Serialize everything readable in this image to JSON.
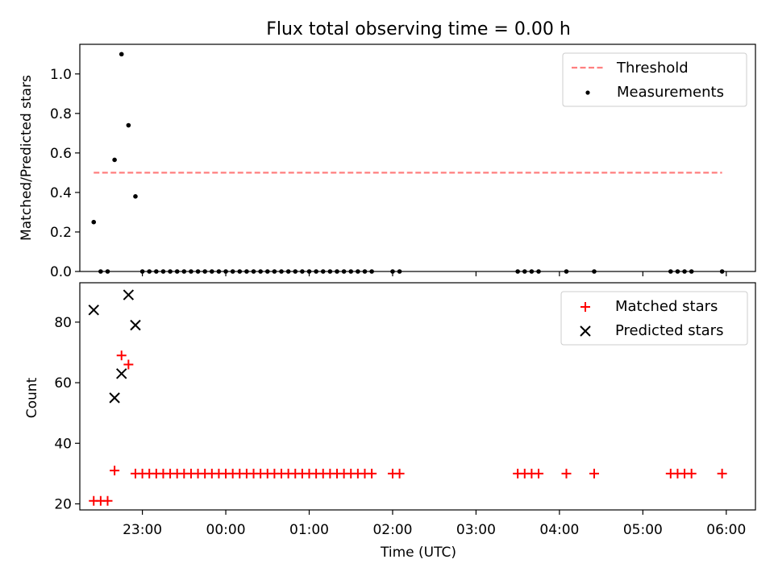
{
  "figure": {
    "title": "Flux total observing time = 0.00 h"
  },
  "chart_data": [
    {
      "type": "scatter",
      "panel": "top",
      "xlabel": "",
      "ylabel": "Matched/Predicted stars",
      "xlim": [
        22.25,
        6.35
      ],
      "x_tick_labels": [
        "23:00",
        "00:00",
        "01:00",
        "02:00",
        "03:00",
        "04:00",
        "05:00",
        "06:00"
      ],
      "ylim": [
        0,
        1.15
      ],
      "y_ticks": [
        0.0,
        0.2,
        0.4,
        0.6,
        0.8,
        1.0
      ],
      "y_tick_labels": [
        "0.0",
        "0.2",
        "0.4",
        "0.6",
        "0.8",
        "1.0"
      ],
      "legend": {
        "location": "top-right",
        "entries": [
          "Threshold",
          "Measurements"
        ]
      },
      "threshold": {
        "name": "Threshold",
        "value": 0.5,
        "x_range": [
          "22:25",
          "05:57"
        ],
        "color": "#ff7f7f",
        "style": "dashed"
      },
      "measurements": {
        "name": "Measurements",
        "color": "#000000",
        "points": [
          {
            "x": "22:25",
            "y": 0.25
          },
          {
            "x": "22:30",
            "y": 0.0
          },
          {
            "x": "22:35",
            "y": 0.0
          },
          {
            "x": "22:40",
            "y": 0.565
          },
          {
            "x": "22:45",
            "y": 1.1
          },
          {
            "x": "22:50",
            "y": 0.74
          },
          {
            "x": "22:55",
            "y": 0.38
          },
          {
            "x": "23:00",
            "y": 0.0
          },
          {
            "x": "23:05",
            "y": 0.0
          },
          {
            "x": "23:10",
            "y": 0.0
          },
          {
            "x": "23:15",
            "y": 0.0
          },
          {
            "x": "23:20",
            "y": 0.0
          },
          {
            "x": "23:25",
            "y": 0.0
          },
          {
            "x": "23:30",
            "y": 0.0
          },
          {
            "x": "23:35",
            "y": 0.0
          },
          {
            "x": "23:40",
            "y": 0.0
          },
          {
            "x": "23:45",
            "y": 0.0
          },
          {
            "x": "23:50",
            "y": 0.0
          },
          {
            "x": "23:55",
            "y": 0.0
          },
          {
            "x": "00:00",
            "y": 0.0
          },
          {
            "x": "00:05",
            "y": 0.0
          },
          {
            "x": "00:10",
            "y": 0.0
          },
          {
            "x": "00:15",
            "y": 0.0
          },
          {
            "x": "00:20",
            "y": 0.0
          },
          {
            "x": "00:25",
            "y": 0.0
          },
          {
            "x": "00:30",
            "y": 0.0
          },
          {
            "x": "00:35",
            "y": 0.0
          },
          {
            "x": "00:40",
            "y": 0.0
          },
          {
            "x": "00:45",
            "y": 0.0
          },
          {
            "x": "00:50",
            "y": 0.0
          },
          {
            "x": "00:55",
            "y": 0.0
          },
          {
            "x": "01:00",
            "y": 0.0
          },
          {
            "x": "01:05",
            "y": 0.0
          },
          {
            "x": "01:10",
            "y": 0.0
          },
          {
            "x": "01:15",
            "y": 0.0
          },
          {
            "x": "01:20",
            "y": 0.0
          },
          {
            "x": "01:25",
            "y": 0.0
          },
          {
            "x": "01:30",
            "y": 0.0
          },
          {
            "x": "01:35",
            "y": 0.0
          },
          {
            "x": "01:40",
            "y": 0.0
          },
          {
            "x": "01:45",
            "y": 0.0
          },
          {
            "x": "02:00",
            "y": 0.0
          },
          {
            "x": "02:05",
            "y": 0.0
          },
          {
            "x": "03:30",
            "y": 0.0
          },
          {
            "x": "03:35",
            "y": 0.0
          },
          {
            "x": "03:40",
            "y": 0.0
          },
          {
            "x": "03:45",
            "y": 0.0
          },
          {
            "x": "04:05",
            "y": 0.0
          },
          {
            "x": "04:25",
            "y": 0.0
          },
          {
            "x": "05:20",
            "y": 0.0
          },
          {
            "x": "05:25",
            "y": 0.0
          },
          {
            "x": "05:30",
            "y": 0.0
          },
          {
            "x": "05:35",
            "y": 0.0
          },
          {
            "x": "05:57",
            "y": 0.0
          }
        ]
      }
    },
    {
      "type": "scatter",
      "panel": "bottom",
      "xlabel": "Time (UTC)",
      "ylabel": "Count",
      "xlim": [
        22.25,
        6.35
      ],
      "x_tick_labels": [
        "23:00",
        "00:00",
        "01:00",
        "02:00",
        "03:00",
        "04:00",
        "05:00",
        "06:00"
      ],
      "ylim": [
        18,
        93
      ],
      "y_ticks": [
        20,
        40,
        60,
        80
      ],
      "y_tick_labels": [
        "20",
        "40",
        "60",
        "80"
      ],
      "legend": {
        "location": "top-right",
        "entries": [
          "Matched stars",
          "Predicted stars"
        ]
      },
      "series": [
        {
          "name": "Matched stars",
          "marker": "+",
          "color": "#ff0000",
          "points": [
            {
              "x": "22:25",
              "y": 21
            },
            {
              "x": "22:30",
              "y": 21
            },
            {
              "x": "22:35",
              "y": 21
            },
            {
              "x": "22:40",
              "y": 31
            },
            {
              "x": "22:45",
              "y": 69
            },
            {
              "x": "22:50",
              "y": 66
            },
            {
              "x": "22:55",
              "y": 30
            },
            {
              "x": "23:00",
              "y": 30
            },
            {
              "x": "23:05",
              "y": 30
            },
            {
              "x": "23:10",
              "y": 30
            },
            {
              "x": "23:15",
              "y": 30
            },
            {
              "x": "23:20",
              "y": 30
            },
            {
              "x": "23:25",
              "y": 30
            },
            {
              "x": "23:30",
              "y": 30
            },
            {
              "x": "23:35",
              "y": 30
            },
            {
              "x": "23:40",
              "y": 30
            },
            {
              "x": "23:45",
              "y": 30
            },
            {
              "x": "23:50",
              "y": 30
            },
            {
              "x": "23:55",
              "y": 30
            },
            {
              "x": "00:00",
              "y": 30
            },
            {
              "x": "00:05",
              "y": 30
            },
            {
              "x": "00:10",
              "y": 30
            },
            {
              "x": "00:15",
              "y": 30
            },
            {
              "x": "00:20",
              "y": 30
            },
            {
              "x": "00:25",
              "y": 30
            },
            {
              "x": "00:30",
              "y": 30
            },
            {
              "x": "00:35",
              "y": 30
            },
            {
              "x": "00:40",
              "y": 30
            },
            {
              "x": "00:45",
              "y": 30
            },
            {
              "x": "00:50",
              "y": 30
            },
            {
              "x": "00:55",
              "y": 30
            },
            {
              "x": "01:00",
              "y": 30
            },
            {
              "x": "01:05",
              "y": 30
            },
            {
              "x": "01:10",
              "y": 30
            },
            {
              "x": "01:15",
              "y": 30
            },
            {
              "x": "01:20",
              "y": 30
            },
            {
              "x": "01:25",
              "y": 30
            },
            {
              "x": "01:30",
              "y": 30
            },
            {
              "x": "01:35",
              "y": 30
            },
            {
              "x": "01:40",
              "y": 30
            },
            {
              "x": "01:45",
              "y": 30
            },
            {
              "x": "02:00",
              "y": 30
            },
            {
              "x": "02:05",
              "y": 30
            },
            {
              "x": "03:30",
              "y": 30
            },
            {
              "x": "03:35",
              "y": 30
            },
            {
              "x": "03:40",
              "y": 30
            },
            {
              "x": "03:45",
              "y": 30
            },
            {
              "x": "04:05",
              "y": 30
            },
            {
              "x": "04:25",
              "y": 30
            },
            {
              "x": "05:20",
              "y": 30
            },
            {
              "x": "05:25",
              "y": 30
            },
            {
              "x": "05:30",
              "y": 30
            },
            {
              "x": "05:35",
              "y": 30
            },
            {
              "x": "05:57",
              "y": 30
            }
          ]
        },
        {
          "name": "Predicted stars",
          "marker": "x",
          "color": "#000000",
          "points": [
            {
              "x": "22:25",
              "y": 84
            },
            {
              "x": "22:40",
              "y": 55
            },
            {
              "x": "22:45",
              "y": 63
            },
            {
              "x": "22:50",
              "y": 89
            },
            {
              "x": "22:55",
              "y": 79
            }
          ]
        }
      ]
    }
  ]
}
